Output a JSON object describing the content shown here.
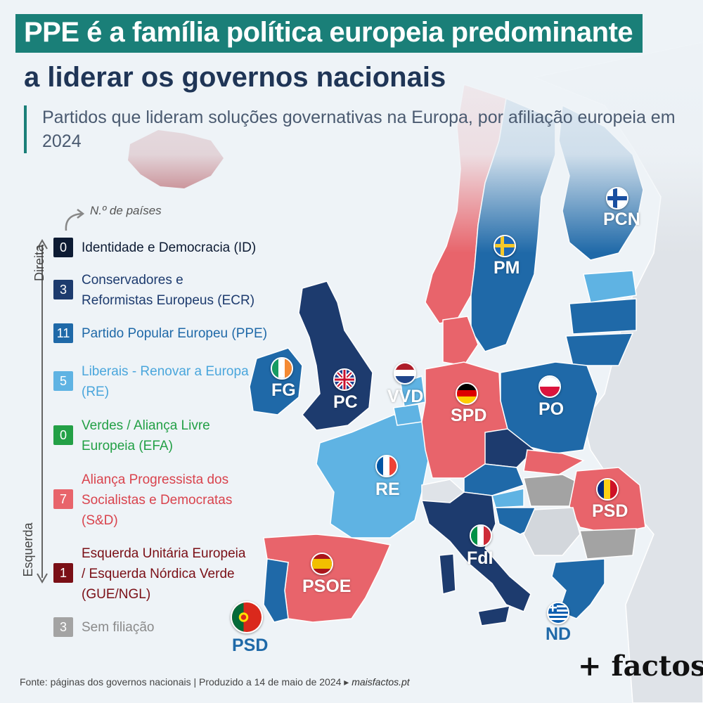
{
  "title": {
    "line1": "PPE é a família política europeia predominante",
    "line2": "a liderar os governos nacionais"
  },
  "subtitle": "Partidos que lideram soluções governativas na Europa, por afiliação europeia em 2024",
  "legend": {
    "count_hint": "N.º de países",
    "axis_top": "Direita",
    "axis_bottom": "Esquerda",
    "items": [
      {
        "count": "0",
        "label": "Identidade e Democracia (ID)",
        "color": "#0d1b33",
        "text_color": "#0d1b33"
      },
      {
        "count": "3",
        "label": "Conservadores e Reformistas Europeus (ECR)",
        "color": "#1d3b6e",
        "text_color": "#1d3b6e"
      },
      {
        "count": "11",
        "label": "Partido Popular Europeu (PPE)",
        "color": "#1f69a8",
        "text_color": "#1f69a8"
      },
      {
        "count": "5",
        "label": "Liberais - Renovar a Europa (RE)",
        "color": "#5fb3e3",
        "text_color": "#4aa6dc"
      },
      {
        "count": "0",
        "label": "Verdes / Aliança Livre Europeia (EFA)",
        "color": "#23a046",
        "text_color": "#23a046"
      },
      {
        "count": "7",
        "label": "Aliança Progressista dos Socialistas e Democratas (S&D)",
        "color": "#e8646b",
        "text_color": "#d9434d"
      },
      {
        "count": "1",
        "label": "Esquerda Unitária Europeia / Esquerda Nórdica Verde (GUE/NGL)",
        "color": "#7a0f16",
        "text_color": "#7a0f16"
      },
      {
        "count": "3",
        "label": "Sem filiação",
        "color": "#a3a3a3",
        "text_color": "#8a8a8a"
      }
    ]
  },
  "countries": {
    "finland": "PCN",
    "sweden": "PM",
    "ireland": "FG",
    "uk": "PC",
    "netherlands": "VVD",
    "germany": "SPD",
    "poland": "PO",
    "france": "RE",
    "romania": "PSD",
    "italy": "FdI",
    "spain": "PSOE",
    "portugal": "PSD",
    "greece": "ND"
  },
  "footer": {
    "source": "Fonte: páginas dos governos nacionais | Produzido a 14 de maio de 2024 ▸",
    "site": "maisfactos.pt"
  },
  "brand": "+ factos"
}
